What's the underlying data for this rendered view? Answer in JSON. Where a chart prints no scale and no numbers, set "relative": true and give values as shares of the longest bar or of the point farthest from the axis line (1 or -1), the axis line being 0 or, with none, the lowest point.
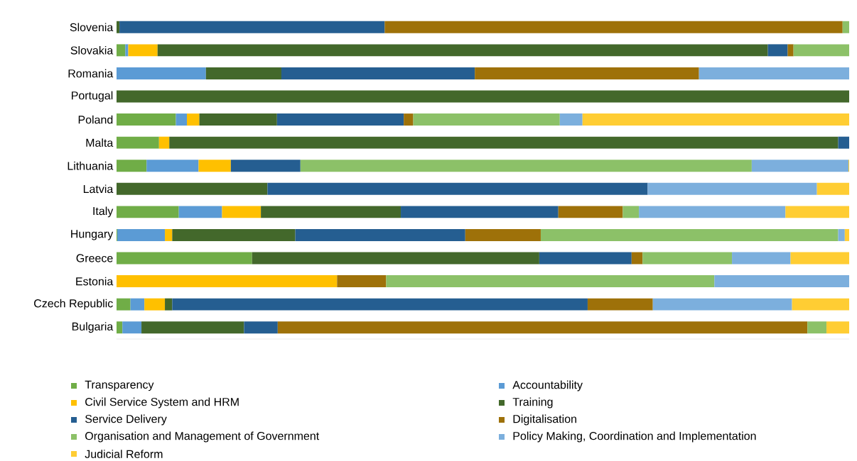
{
  "chart_data": {
    "type": "bar",
    "orientation": "horizontal",
    "stacked": true,
    "relative": true,
    "legend": "bottom",
    "categories": [
      "Slovenia",
      "Slovakia",
      "Romania",
      "Portugal",
      "Poland",
      "Malta",
      "Lithuania",
      "Latvia",
      "Italy",
      "Hungary",
      "Greece",
      "Estonia",
      "Czech Republic",
      "Bulgaria"
    ],
    "series": [
      {
        "name": "Transparency",
        "color": "#70ad47",
        "values": [
          0,
          0.012,
          0,
          0,
          0.081,
          0.058,
          0.041,
          0,
          0.085,
          0.001,
          0.185,
          0,
          0.019,
          0.008
        ]
      },
      {
        "name": "Accountability",
        "color": "#5b9bd5",
        "values": [
          0,
          0.004,
          0.122,
          0,
          0.015,
          0,
          0.071,
          0,
          0.059,
          0.065,
          0,
          0,
          0.019,
          0.026
        ]
      },
      {
        "name": "Civil Service System and HRM",
        "color": "#ffc000",
        "values": [
          0,
          0.04,
          0,
          0,
          0.017,
          0.014,
          0.044,
          0,
          0.053,
          0.01,
          0,
          0.301,
          0.028,
          0
        ]
      },
      {
        "name": "Training",
        "color": "#43682b",
        "values": [
          0.004,
          0.833,
          0.103,
          1.0,
          0.106,
          0.913,
          0,
          0.206,
          0.191,
          0.168,
          0.392,
          0,
          0.01,
          0.14
        ]
      },
      {
        "name": "Service Delivery",
        "color": "#255e91",
        "values": [
          0.362,
          0.027,
          0.264,
          0,
          0.173,
          0.015,
          0.095,
          0.519,
          0.215,
          0.232,
          0.126,
          0,
          0.567,
          0.046
        ]
      },
      {
        "name": "Digitalisation",
        "color": "#9e7109",
        "values": [
          0.625,
          0.008,
          0.306,
          0,
          0.013,
          0,
          0,
          0,
          0.088,
          0.103,
          0.015,
          0.067,
          0.089,
          0.723
        ]
      },
      {
        "name": "Organisation and Management of Government",
        "color": "#8cc168",
        "values": [
          0.009,
          0.076,
          0,
          0,
          0.2,
          0,
          0.616,
          0,
          0.022,
          0.406,
          0.122,
          0.448,
          0,
          0.026
        ]
      },
      {
        "name": "Policy Making, Coordination and Implementation",
        "color": "#7cafdd",
        "values": [
          0,
          0,
          0.205,
          0,
          0.031,
          0,
          0.132,
          0.231,
          0.2,
          0.009,
          0.08,
          0.184,
          0.19,
          0
        ]
      },
      {
        "name": "Judicial Reform",
        "color": "#ffcd33",
        "values": [
          0,
          0,
          0,
          0,
          0.364,
          0,
          0.001,
          0.044,
          0.087,
          0.006,
          0.08,
          0,
          0.078,
          0.031
        ]
      }
    ]
  }
}
